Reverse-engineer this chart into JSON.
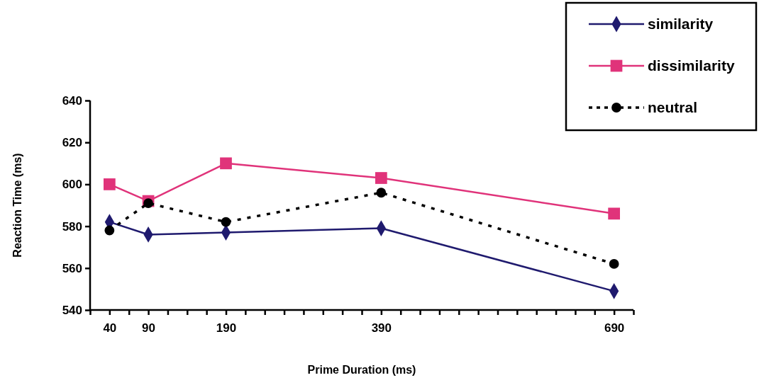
{
  "chart_data": {
    "type": "line",
    "xlabel": "Prime Duration (ms)",
    "ylabel": "Reaction Time (ms)",
    "x": [
      40,
      90,
      190,
      390,
      690
    ],
    "xlim": [
      15,
      715
    ],
    "xticks": [
      {
        "value": 15,
        "label": null
      },
      40,
      {
        "value": 65,
        "label": null
      },
      90,
      {
        "value": 115,
        "label": null
      },
      {
        "value": 140,
        "label": null
      },
      {
        "value": 165,
        "label": null
      },
      190,
      {
        "value": 215,
        "label": null
      },
      {
        "value": 240,
        "label": null
      },
      {
        "value": 265,
        "label": null
      },
      {
        "value": 290,
        "label": null
      },
      {
        "value": 315,
        "label": null
      },
      {
        "value": 340,
        "label": null
      },
      {
        "value": 365,
        "label": null
      },
      390,
      {
        "value": 415,
        "label": null
      },
      {
        "value": 440,
        "label": null
      },
      {
        "value": 465,
        "label": null
      },
      {
        "value": 490,
        "label": null
      },
      {
        "value": 515,
        "label": null
      },
      {
        "value": 540,
        "label": null
      },
      {
        "value": 565,
        "label": null
      },
      {
        "value": 590,
        "label": null
      },
      {
        "value": 615,
        "label": null
      },
      {
        "value": 640,
        "label": null
      },
      {
        "value": 665,
        "label": null
      },
      690,
      {
        "value": 715,
        "label": null
      }
    ],
    "ylim": [
      540,
      640
    ],
    "yticks": [
      540,
      560,
      580,
      600,
      620,
      640
    ],
    "grid": false,
    "legend": "top right",
    "series": [
      {
        "name": "similarity",
        "color": "#1f1a6e",
        "marker": "diamond",
        "line_style": "solid",
        "values": [
          582,
          576,
          577,
          579,
          549
        ]
      },
      {
        "name": "dissimilarity",
        "color": "#e0337a",
        "marker": "square",
        "line_style": "solid",
        "values": [
          600,
          592,
          610,
          603,
          586
        ]
      },
      {
        "name": "neutral",
        "color": "#000000",
        "marker": "circle",
        "line_style": "dashed",
        "values": [
          578,
          591,
          582,
          596,
          562
        ]
      }
    ]
  }
}
